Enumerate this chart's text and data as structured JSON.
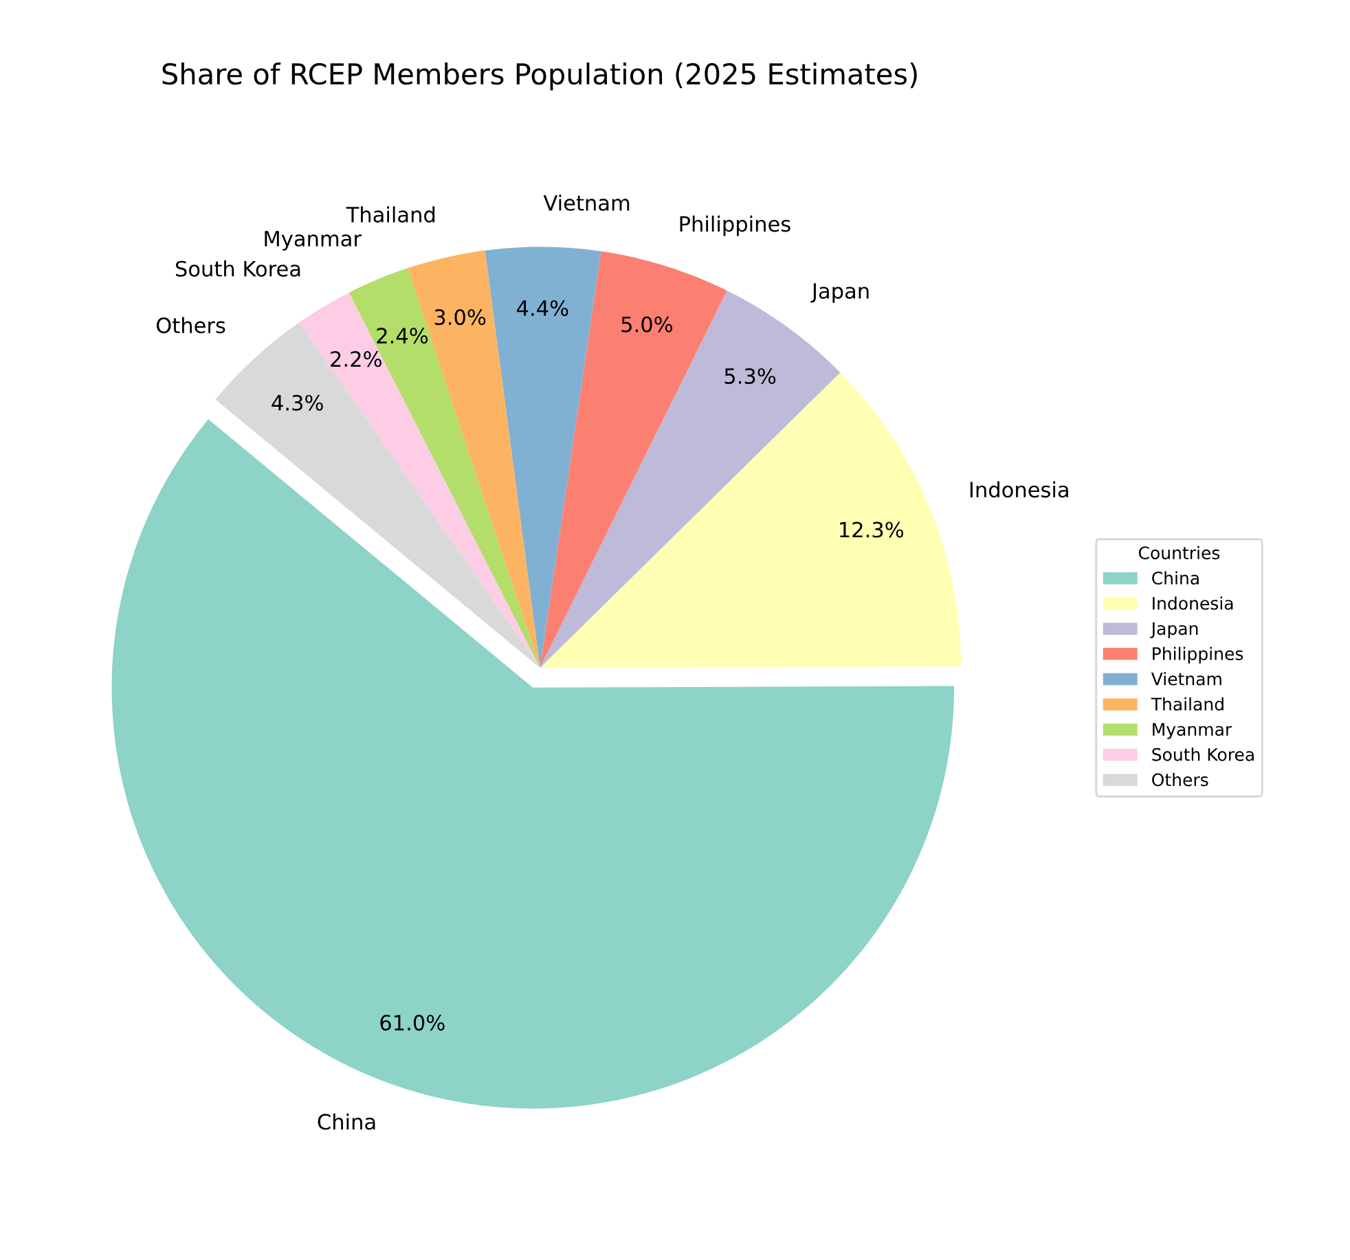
{
  "chart_data": {
    "type": "pie",
    "title": "Share of RCEP Members Population (2025 Estimates)",
    "categories": [
      "China",
      "Indonesia",
      "Japan",
      "Philippines",
      "Vietnam",
      "Thailand",
      "Myanmar",
      "South Korea",
      "Others"
    ],
    "values": [
      61.0,
      12.3,
      5.3,
      5.0,
      4.4,
      3.0,
      2.4,
      2.2,
      4.3
    ],
    "value_labels": [
      "61.0%",
      "12.3%",
      "5.3%",
      "5.0%",
      "4.4%",
      "3.0%",
      "2.4%",
      "2.2%",
      "4.3%"
    ],
    "colors": [
      "#8dd3c7",
      "#ffffb3",
      "#bebada",
      "#fb8072",
      "#80b1d3",
      "#fdb462",
      "#b3de69",
      "#fccde5",
      "#d9d9d9"
    ],
    "legend": "right",
    "legend_title": "Countries"
  }
}
